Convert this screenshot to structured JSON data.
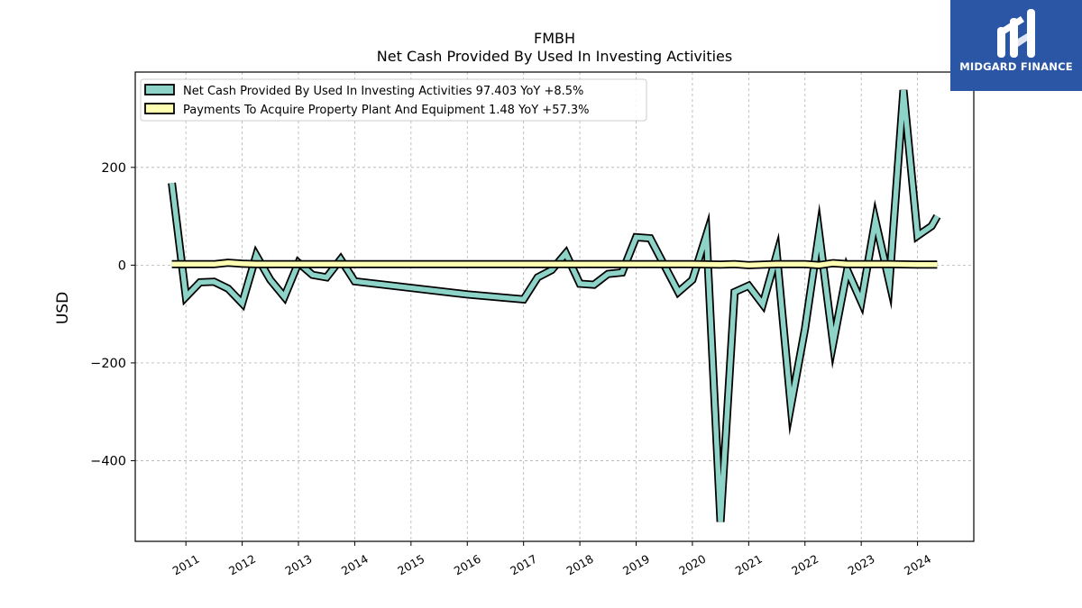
{
  "chart_data": {
    "type": "line",
    "ticker": "FMBH",
    "title": "Net Cash Provided By Used In Investing Activities",
    "ylabel": "USD",
    "xlabel": "",
    "ylim": [
      -565,
      395
    ],
    "xlim": [
      2010.1,
      2025.0
    ],
    "yticks": [
      -400,
      -200,
      0,
      200
    ],
    "ytick_labels": [
      "−400",
      "−200",
      "0",
      "200"
    ],
    "xticks": [
      2011,
      2012,
      2013,
      2014,
      2015,
      2016,
      2017,
      2018,
      2019,
      2020,
      2021,
      2022,
      2023,
      2024
    ],
    "grid": true,
    "legend_position": "top-left",
    "series": [
      {
        "name": "Net Cash Provided By Used In Investing Activities",
        "legend_label": "Net Cash Provided By Used In Investing Activities  97.403 YoY +8.5%",
        "color": "#8dd3c7",
        "points": [
          [
            2010.75,
            168
          ],
          [
            2011.0,
            -65
          ],
          [
            2011.25,
            -35
          ],
          [
            2011.5,
            -34
          ],
          [
            2011.75,
            -48
          ],
          [
            2012.0,
            -78
          ],
          [
            2012.25,
            20
          ],
          [
            2012.5,
            -30
          ],
          [
            2012.75,
            -65
          ],
          [
            2013.0,
            5
          ],
          [
            2013.25,
            -20
          ],
          [
            2013.5,
            -25
          ],
          [
            2013.75,
            12
          ],
          [
            2014.0,
            -33
          ],
          [
            2016.0,
            -60
          ],
          [
            2017.0,
            -70
          ],
          [
            2017.25,
            -25
          ],
          [
            2017.5,
            -10
          ],
          [
            2017.75,
            24
          ],
          [
            2018.0,
            -38
          ],
          [
            2018.25,
            -40
          ],
          [
            2018.5,
            -18
          ],
          [
            2018.75,
            -15
          ],
          [
            2019.0,
            57
          ],
          [
            2019.25,
            55
          ],
          [
            2019.5,
            0
          ],
          [
            2019.75,
            -55
          ],
          [
            2020.0,
            -30
          ],
          [
            2020.25,
            62
          ],
          [
            2020.5,
            -525
          ],
          [
            2020.75,
            -55
          ],
          [
            2021.0,
            -42
          ],
          [
            2021.25,
            -80
          ],
          [
            2021.5,
            22
          ],
          [
            2021.75,
            -288
          ],
          [
            2022.0,
            -130
          ],
          [
            2022.25,
            66
          ],
          [
            2022.5,
            -160
          ],
          [
            2022.75,
            -10
          ],
          [
            2023.0,
            -75
          ],
          [
            2023.25,
            92
          ],
          [
            2023.5,
            -35
          ],
          [
            2023.75,
            358
          ],
          [
            2024.0,
            60
          ],
          [
            2024.25,
            80
          ],
          [
            2024.35,
            100
          ]
        ]
      },
      {
        "name": "Payments To Acquire Property Plant And Equipment",
        "legend_label": "Payments To Acquire Property Plant And Equipment  1.48 YoY +57.3%",
        "color": "#ffffb3",
        "points": [
          [
            2010.75,
            2
          ],
          [
            2011.0,
            2
          ],
          [
            2011.25,
            2
          ],
          [
            2011.5,
            2
          ],
          [
            2011.75,
            5
          ],
          [
            2012.0,
            3
          ],
          [
            2012.25,
            2
          ],
          [
            2012.5,
            2
          ],
          [
            2012.75,
            2
          ],
          [
            2013.0,
            2
          ],
          [
            2013.25,
            2
          ],
          [
            2013.5,
            2
          ],
          [
            2013.75,
            2
          ],
          [
            2014.0,
            2
          ],
          [
            2015.0,
            2
          ],
          [
            2016.0,
            2
          ],
          [
            2017.0,
            2
          ],
          [
            2018.0,
            2
          ],
          [
            2019.0,
            2
          ],
          [
            2019.5,
            2
          ],
          [
            2020.0,
            2
          ],
          [
            2020.5,
            1
          ],
          [
            2020.75,
            2
          ],
          [
            2021.0,
            0
          ],
          [
            2021.5,
            2
          ],
          [
            2022.0,
            2
          ],
          [
            2022.25,
            0
          ],
          [
            2022.5,
            4
          ],
          [
            2022.75,
            2
          ],
          [
            2023.0,
            2
          ],
          [
            2023.5,
            2
          ],
          [
            2024.0,
            1
          ],
          [
            2024.35,
            1
          ]
        ]
      }
    ]
  },
  "logo": {
    "text": "MIDGARD FINANCE",
    "background": "#2a56a5",
    "icon": "midgard-m-logo-icon"
  }
}
